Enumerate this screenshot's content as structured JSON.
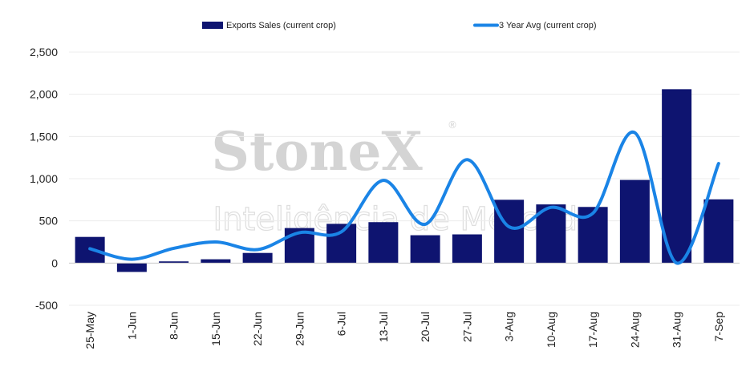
{
  "watermark": {
    "brand": "StoneX",
    "registered": "®",
    "subtitle": "Inteligência de Mercado"
  },
  "chart_data": {
    "type": "bar",
    "title": "",
    "xlabel": "",
    "ylabel": "",
    "categories": [
      "25-May",
      "1-Jun",
      "8-Jun",
      "15-Jun",
      "22-Jun",
      "29-Jun",
      "6-Jul",
      "13-Jul",
      "20-Jul",
      "27-Jul",
      "3-Aug",
      "10-Aug",
      "17-Aug",
      "24-Aug",
      "31-Aug",
      "7-Sep"
    ],
    "ylim": [
      -500,
      2500
    ],
    "yticks": [
      -500,
      0,
      500,
      1000,
      1500,
      2000,
      2500
    ],
    "ytick_labels": [
      "-500",
      "0",
      "500",
      "1,000",
      "1,500",
      "2,000",
      "2,500"
    ],
    "grid": true,
    "legend_position": "top",
    "series": [
      {
        "name": "Exports Sales (current crop)",
        "type": "bar",
        "color": "#0e1470",
        "values": [
          310,
          -105,
          20,
          45,
          120,
          415,
          465,
          485,
          330,
          340,
          750,
          695,
          665,
          985,
          2060,
          755
        ]
      },
      {
        "name": "3 Year Avg (current crop)",
        "type": "line",
        "smooth": true,
        "color": "#1a84e6",
        "values": [
          170,
          45,
          175,
          250,
          160,
          360,
          370,
          980,
          460,
          1225,
          430,
          660,
          590,
          1545,
          0,
          1180
        ]
      }
    ]
  }
}
